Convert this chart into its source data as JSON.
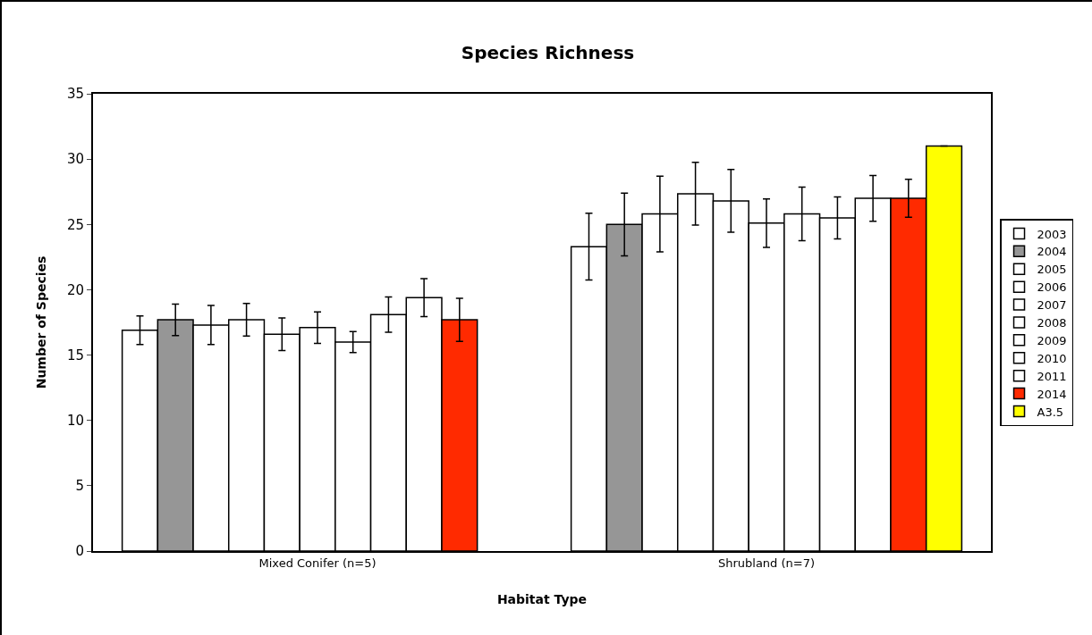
{
  "chart_data": {
    "type": "bar",
    "title": "Species Richness",
    "xlabel": "Habitat Type",
    "ylabel": "Number of Species",
    "categories": [
      "Mixed Conifer (n=5)",
      "Shrubland (n=7)"
    ],
    "series": [
      {
        "name": "2003",
        "color": "#ffffff",
        "values": [
          16.9,
          23.3
        ],
        "errors": [
          1.1,
          2.55
        ]
      },
      {
        "name": "2004",
        "color": "#969696",
        "values": [
          17.7,
          25.0
        ],
        "errors": [
          1.2,
          2.4
        ]
      },
      {
        "name": "2005",
        "color": "#ffffff",
        "values": [
          17.3,
          25.8
        ],
        "errors": [
          1.5,
          2.9
        ]
      },
      {
        "name": "2006",
        "color": "#ffffff",
        "values": [
          17.7,
          27.35
        ],
        "errors": [
          1.25,
          2.4
        ]
      },
      {
        "name": "2007",
        "color": "#ffffff",
        "values": [
          16.6,
          26.8
        ],
        "errors": [
          1.25,
          2.4
        ]
      },
      {
        "name": "2008",
        "color": "#ffffff",
        "values": [
          17.1,
          25.1
        ],
        "errors": [
          1.2,
          1.85
        ]
      },
      {
        "name": "2009",
        "color": "#ffffff",
        "values": [
          16.0,
          25.8
        ],
        "errors": [
          0.8,
          2.05
        ]
      },
      {
        "name": "2010",
        "color": "#ffffff",
        "values": [
          18.1,
          25.5
        ],
        "errors": [
          1.35,
          1.6
        ]
      },
      {
        "name": "2011",
        "color": "#ffffff",
        "values": [
          19.4,
          27.0
        ],
        "errors": [
          1.45,
          1.75
        ]
      },
      {
        "name": "2014",
        "color": "#ff2a00",
        "values": [
          17.7,
          27.0
        ],
        "errors": [
          1.65,
          1.45
        ]
      },
      {
        "name": "A3.5",
        "color": "#ffff00",
        "values": [
          null,
          31.0
        ],
        "errors": [
          null,
          null
        ]
      }
    ],
    "ylim": [
      0,
      35
    ],
    "yticks": [
      0,
      5,
      10,
      15,
      20,
      25,
      30,
      35
    ],
    "grid": false,
    "legend": "right"
  }
}
